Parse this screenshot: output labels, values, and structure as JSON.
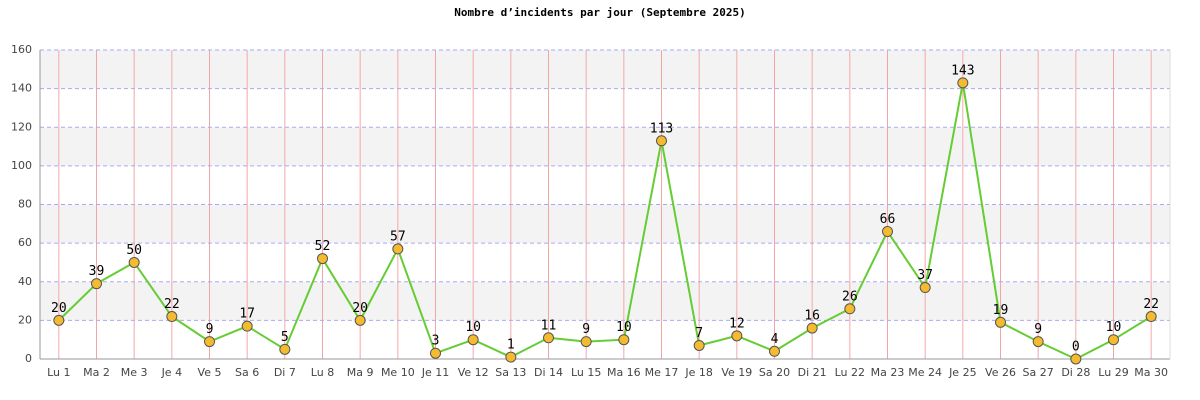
{
  "chart_data": {
    "type": "line",
    "title": "Nombre d’incidents par jour (Septembre 2025)",
    "categories": [
      "Lu 1",
      "Ma 2",
      "Me 3",
      "Je 4",
      "Ve 5",
      "Sa 6",
      "Di 7",
      "Lu 8",
      "Ma 9",
      "Me 10",
      "Je 11",
      "Ve 12",
      "Sa 13",
      "Di 14",
      "Lu 15",
      "Ma 16",
      "Me 17",
      "Je 18",
      "Ve 19",
      "Sa 20",
      "Di 21",
      "Lu 22",
      "Ma 23",
      "Me 24",
      "Je 25",
      "Ve 26",
      "Sa 27",
      "Di 28",
      "Lu 29",
      "Ma 30"
    ],
    "values": [
      20,
      39,
      50,
      22,
      9,
      17,
      5,
      52,
      20,
      57,
      3,
      10,
      1,
      11,
      9,
      10,
      113,
      7,
      12,
      4,
      16,
      26,
      66,
      37,
      143,
      19,
      9,
      0,
      10,
      22
    ],
    "color": "#66cc33",
    "marker_color": "#f5bb2e",
    "ylim": [
      0,
      160
    ],
    "yticks": [
      0,
      20,
      40,
      60,
      80,
      100,
      120,
      140,
      160
    ],
    "grid": true
  }
}
